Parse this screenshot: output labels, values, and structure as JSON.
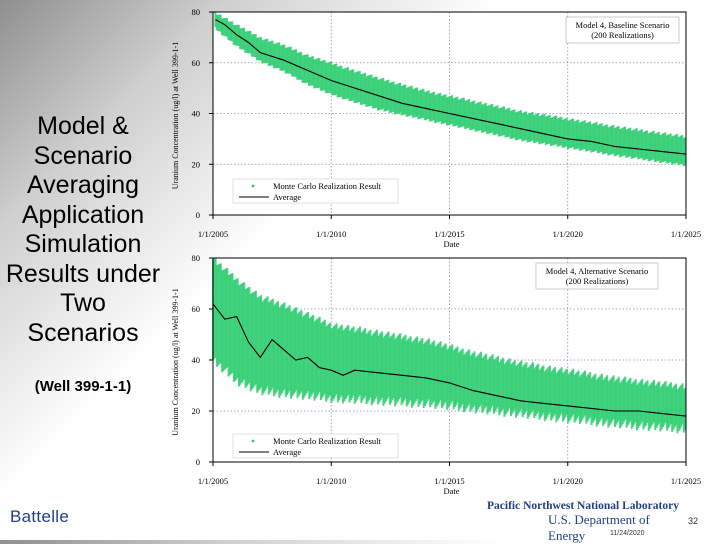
{
  "slide": {
    "title": "Model & Scenario Averaging Application Simulation Results under Two Scenarios",
    "subtitle": "(Well 399-1-1)",
    "footer": {
      "org": "Battelle",
      "lab": "Pacific Northwest National Laboratory",
      "dept": "U.S. Department of Energy",
      "page": "32",
      "date": "11/24/2020"
    }
  },
  "colors": {
    "realization": "#2ecc71",
    "average": "#000000",
    "grid": "#8a8ab8",
    "frame": "#000000"
  },
  "chart_data": [
    {
      "type": "line",
      "annotation": [
        "Model 4, Baseline Scenario",
        "(200 Realizations)"
      ],
      "xlabel": "Date",
      "ylabel": "Uranium Concentration (ug/l) at Well 399-1-1",
      "x_ticks": [
        "1/1/2005",
        "1/1/2010",
        "1/1/2015",
        "1/1/2020",
        "1/1/2025"
      ],
      "y_ticks": [
        0,
        20,
        40,
        60,
        80
      ],
      "xlim": [
        2005,
        2025
      ],
      "ylim": [
        0,
        80
      ],
      "grid": true,
      "legend": {
        "position": "bottom-left",
        "entries": [
          "Monte Carlo Realization Result",
          "Average"
        ]
      },
      "series": [
        {
          "name": "Average",
          "x": [
            2005.1,
            2005.5,
            2006.0,
            2006.5,
            2007.0,
            2008.0,
            2009.0,
            2010.0,
            2011.0,
            2012.0,
            2013.0,
            2014.0,
            2015.0,
            2016.0,
            2017.0,
            2018.0,
            2019.0,
            2020.0,
            2021.0,
            2022.0,
            2023.0,
            2024.0,
            2025.0
          ],
          "y": [
            77,
            75,
            71,
            68,
            64,
            61,
            57,
            53,
            50,
            47,
            44,
            42,
            40,
            38,
            36,
            34,
            32,
            30,
            29,
            27,
            26,
            25,
            24
          ]
        },
        {
          "name": "Monte Carlo Realization Result",
          "x": [
            2005.1,
            2006.0,
            2007.0,
            2008.0,
            2009.0,
            2010.0,
            2012.0,
            2014.0,
            2016.0,
            2018.0,
            2020.0,
            2022.0,
            2025.0
          ],
          "y_low": [
            73,
            66,
            60,
            56,
            51,
            47,
            41,
            37,
            33,
            29,
            26,
            23,
            19
          ],
          "y_high": [
            79,
            74,
            69,
            66,
            62,
            59,
            53,
            48,
            44,
            40,
            37,
            34,
            30
          ]
        }
      ]
    },
    {
      "type": "line",
      "annotation": [
        "Model 4, Alternative Scenario",
        "(200 Realizations)"
      ],
      "xlabel": "Date",
      "ylabel": "Uranium Concentration (ug/l) at Well 399-1-1",
      "x_ticks": [
        "1/1/2005",
        "1/1/2010",
        "1/1/2015",
        "1/1/2020",
        "1/1/2025"
      ],
      "y_ticks": [
        0,
        20,
        40,
        60,
        80
      ],
      "xlim": [
        2005,
        2025
      ],
      "ylim": [
        0,
        80
      ],
      "grid": true,
      "legend": {
        "position": "bottom-left",
        "entries": [
          "Monte Carlo Realization Result",
          "Average"
        ]
      },
      "series": [
        {
          "name": "Average",
          "x": [
            2005.0,
            2005.5,
            2006.0,
            2006.5,
            2007.0,
            2007.5,
            2008.0,
            2008.5,
            2009.0,
            2009.5,
            2010.0,
            2010.5,
            2011.0,
            2012.0,
            2013.0,
            2014.0,
            2015.0,
            2016.0,
            2017.0,
            2018.0,
            2019.0,
            2020.0,
            2021.0,
            2022.0,
            2023.0,
            2024.0,
            2025.0
          ],
          "y": [
            62,
            56,
            57,
            47,
            41,
            48,
            44,
            40,
            41,
            37,
            36,
            34,
            36,
            35,
            34,
            33,
            31,
            28,
            26,
            24,
            23,
            22,
            21,
            20,
            20,
            19,
            18
          ]
        },
        {
          "name": "Monte Carlo Realization Result",
          "x": [
            2005.0,
            2006.0,
            2007.0,
            2008.0,
            2009.0,
            2010.0,
            2012.0,
            2014.0,
            2016.0,
            2018.0,
            2020.0,
            2022.0,
            2025.0
          ],
          "y_low": [
            38,
            30,
            26,
            25,
            24,
            23,
            22,
            21,
            19,
            17,
            15,
            13,
            11
          ],
          "y_high": [
            78,
            70,
            63,
            60,
            56,
            52,
            49,
            46,
            41,
            37,
            34,
            31,
            28
          ]
        }
      ]
    }
  ]
}
